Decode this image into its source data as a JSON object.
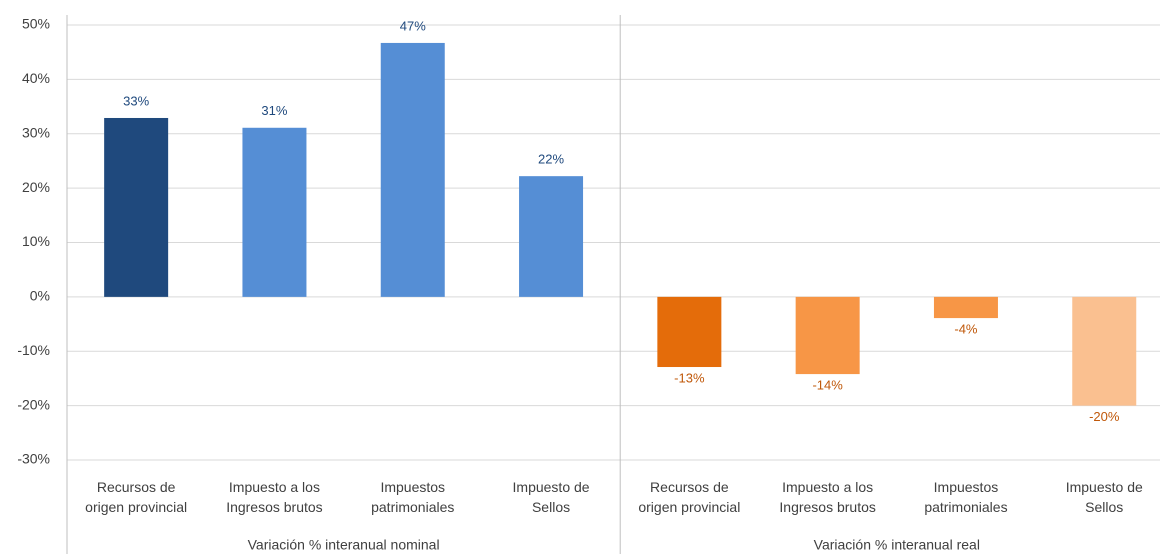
{
  "chart_data": {
    "type": "bar",
    "ylim": [
      -30,
      50
    ],
    "yticks": [
      {
        "value": -30,
        "label": "-30%"
      },
      {
        "value": -20,
        "label": "-20%"
      },
      {
        "value": -10,
        "label": "-10%"
      },
      {
        "value": 0,
        "label": "0%"
      },
      {
        "value": 10,
        "label": "10%"
      },
      {
        "value": 20,
        "label": "20%"
      },
      {
        "value": 30,
        "label": "30%"
      },
      {
        "value": 40,
        "label": "40%"
      },
      {
        "value": 50,
        "label": "50%"
      }
    ],
    "grid": true,
    "groups": [
      {
        "label": "Variación % interanual nominal",
        "categories": [
          "Recursos de\norigen provincial",
          "Impuesto a los\nIngresos brutos",
          "Impuestos\npatrimoniales",
          "Impuesto de\nSellos"
        ],
        "values": [
          32.9,
          31.1,
          46.7,
          22.2
        ],
        "value_labels": [
          "33%",
          "31%",
          "47%",
          "22%"
        ],
        "colors": [
          "#1f497d",
          "#558ed5",
          "#558ed5",
          "#558ed5"
        ],
        "label_color": "#1f497d"
      },
      {
        "label": "Variación % interanual real",
        "categories": [
          "Recursos de\norigen provincial",
          "Impuesto a los\nIngresos brutos",
          "Impuestos\npatrimoniales",
          "Impuesto de\nSellos"
        ],
        "values": [
          -12.9,
          -14.2,
          -3.9,
          -20.0
        ],
        "value_labels": [
          "-13%",
          "-14%",
          "-4%",
          "-20%"
        ],
        "colors": [
          "#e46c0a",
          "#f79646",
          "#f79646",
          "#fac090"
        ],
        "label_color": "#c0580a"
      }
    ]
  }
}
